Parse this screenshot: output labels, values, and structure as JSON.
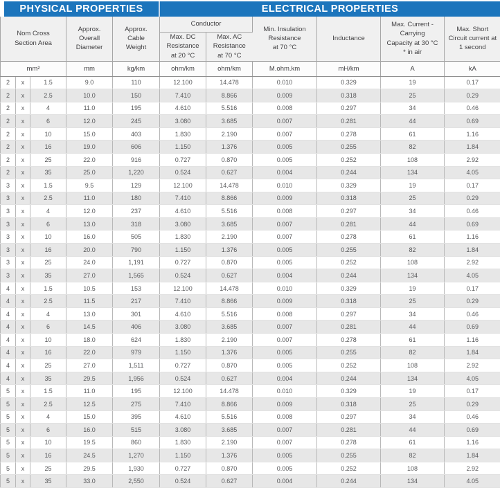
{
  "titles": {
    "physical": "PHYSICAL PROPERTIES",
    "electrical": "ELECTRICAL PROPERTIES"
  },
  "colors": {
    "accent_blue": "#1c75bc",
    "stripe_gray": "#e7e7e7"
  },
  "head": {
    "nom_cross": "Nom Cross\nSection Area",
    "overall_diameter": "Approx.\nOverall\nDiameter",
    "cable_weight": "Approx.\nCable\nWeight",
    "conductor": "Conductor",
    "dc_resistance": "Max. DC\nResistance\nat 20 °C",
    "ac_resistance": "Max. AC\nResistance\nat 70 °C",
    "insulation": "Min. Insulation\nResistance\nat 70 °C",
    "inductance": "Inductance",
    "current": "Max. Current -\nCarrying\nCapacity at 30 °C\n* in air",
    "short_circuit": "Max. Short\nCircuit current at\n1 second"
  },
  "units": [
    "mm²",
    "mm",
    "kg/km",
    "ohm/km",
    "ohm/km",
    "M.ohm.km",
    "mH/km",
    "A",
    "kA"
  ],
  "rows": [
    [
      "2",
      "x",
      "1.5",
      "9.0",
      "110",
      "12.100",
      "14.478",
      "0.010",
      "0.329",
      "19",
      "0.17"
    ],
    [
      "2",
      "x",
      "2.5",
      "10.0",
      "150",
      "7.410",
      "8.866",
      "0.009",
      "0.318",
      "25",
      "0.29"
    ],
    [
      "2",
      "x",
      "4",
      "11.0",
      "195",
      "4.610",
      "5.516",
      "0.008",
      "0.297",
      "34",
      "0.46"
    ],
    [
      "2",
      "x",
      "6",
      "12.0",
      "245",
      "3.080",
      "3.685",
      "0.007",
      "0.281",
      "44",
      "0.69"
    ],
    [
      "2",
      "x",
      "10",
      "15.0",
      "403",
      "1.830",
      "2.190",
      "0.007",
      "0.278",
      "61",
      "1.16"
    ],
    [
      "2",
      "x",
      "16",
      "19.0",
      "606",
      "1.150",
      "1.376",
      "0.005",
      "0.255",
      "82",
      "1.84"
    ],
    [
      "2",
      "x",
      "25",
      "22.0",
      "916",
      "0.727",
      "0.870",
      "0.005",
      "0.252",
      "108",
      "2.92"
    ],
    [
      "2",
      "x",
      "35",
      "25.0",
      "1,220",
      "0.524",
      "0.627",
      "0.004",
      "0.244",
      "134",
      "4.05"
    ],
    [
      "3",
      "x",
      "1.5",
      "9.5",
      "129",
      "12.100",
      "14.478",
      "0.010",
      "0.329",
      "19",
      "0.17"
    ],
    [
      "3",
      "x",
      "2.5",
      "11.0",
      "180",
      "7.410",
      "8.866",
      "0.009",
      "0.318",
      "25",
      "0.29"
    ],
    [
      "3",
      "x",
      "4",
      "12.0",
      "237",
      "4.610",
      "5.516",
      "0.008",
      "0.297",
      "34",
      "0.46"
    ],
    [
      "3",
      "x",
      "6",
      "13.0",
      "318",
      "3.080",
      "3.685",
      "0.007",
      "0.281",
      "44",
      "0.69"
    ],
    [
      "3",
      "x",
      "10",
      "16.0",
      "505",
      "1.830",
      "2.190",
      "0.007",
      "0.278",
      "61",
      "1.16"
    ],
    [
      "3",
      "x",
      "16",
      "20.0",
      "790",
      "1.150",
      "1.376",
      "0.005",
      "0.255",
      "82",
      "1.84"
    ],
    [
      "3",
      "x",
      "25",
      "24.0",
      "1,191",
      "0.727",
      "0.870",
      "0.005",
      "0.252",
      "108",
      "2.92"
    ],
    [
      "3",
      "x",
      "35",
      "27.0",
      "1,565",
      "0.524",
      "0.627",
      "0.004",
      "0.244",
      "134",
      "4.05"
    ],
    [
      "4",
      "x",
      "1.5",
      "10.5",
      "153",
      "12.100",
      "14.478",
      "0.010",
      "0.329",
      "19",
      "0.17"
    ],
    [
      "4",
      "x",
      "2.5",
      "11.5",
      "217",
      "7.410",
      "8.866",
      "0.009",
      "0.318",
      "25",
      "0.29"
    ],
    [
      "4",
      "x",
      "4",
      "13.0",
      "301",
      "4.610",
      "5.516",
      "0.008",
      "0.297",
      "34",
      "0.46"
    ],
    [
      "4",
      "x",
      "6",
      "14.5",
      "406",
      "3.080",
      "3.685",
      "0.007",
      "0.281",
      "44",
      "0.69"
    ],
    [
      "4",
      "x",
      "10",
      "18.0",
      "624",
      "1.830",
      "2.190",
      "0.007",
      "0.278",
      "61",
      "1.16"
    ],
    [
      "4",
      "x",
      "16",
      "22.0",
      "979",
      "1.150",
      "1.376",
      "0.005",
      "0.255",
      "82",
      "1.84"
    ],
    [
      "4",
      "x",
      "25",
      "27.0",
      "1,511",
      "0.727",
      "0.870",
      "0.005",
      "0.252",
      "108",
      "2.92"
    ],
    [
      "4",
      "x",
      "35",
      "29.5",
      "1,956",
      "0.524",
      "0.627",
      "0.004",
      "0.244",
      "134",
      "4.05"
    ],
    [
      "5",
      "x",
      "1.5",
      "11.0",
      "195",
      "12.100",
      "14.478",
      "0.010",
      "0.329",
      "19",
      "0.17"
    ],
    [
      "5",
      "x",
      "2.5",
      "12.5",
      "275",
      "7.410",
      "8.866",
      "0.009",
      "0.318",
      "25",
      "0.29"
    ],
    [
      "5",
      "x",
      "4",
      "15.0",
      "395",
      "4.610",
      "5.516",
      "0.008",
      "0.297",
      "34",
      "0.46"
    ],
    [
      "5",
      "x",
      "6",
      "16.0",
      "515",
      "3.080",
      "3.685",
      "0.007",
      "0.281",
      "44",
      "0.69"
    ],
    [
      "5",
      "x",
      "10",
      "19.5",
      "860",
      "1.830",
      "2.190",
      "0.007",
      "0.278",
      "61",
      "1.16"
    ],
    [
      "5",
      "x",
      "16",
      "24.5",
      "1,270",
      "1.150",
      "1.376",
      "0.005",
      "0.255",
      "82",
      "1.84"
    ],
    [
      "5",
      "x",
      "25",
      "29.5",
      "1,930",
      "0.727",
      "0.870",
      "0.005",
      "0.252",
      "108",
      "2.92"
    ],
    [
      "5",
      "x",
      "35",
      "33.0",
      "2,550",
      "0.524",
      "0.627",
      "0.004",
      "0.244",
      "134",
      "4.05"
    ]
  ]
}
